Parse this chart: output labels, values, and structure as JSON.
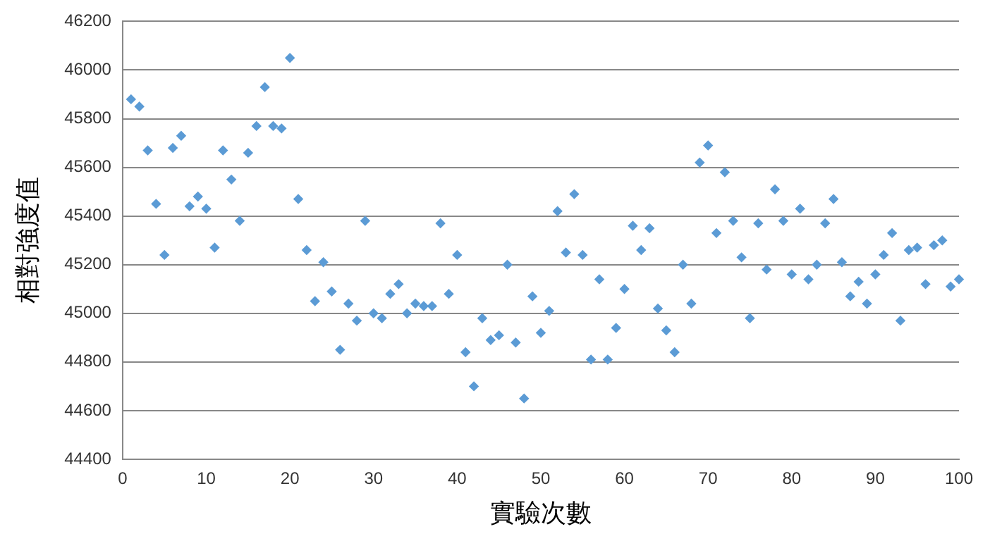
{
  "chart_data": {
    "type": "scatter",
    "xlabel": "實驗次數",
    "ylabel": "相對強度值",
    "x": [
      1,
      2,
      3,
      4,
      5,
      6,
      7,
      8,
      9,
      10,
      11,
      12,
      13,
      14,
      15,
      16,
      17,
      18,
      19,
      20,
      21,
      22,
      23,
      24,
      25,
      26,
      27,
      28,
      29,
      30,
      31,
      32,
      33,
      34,
      35,
      36,
      37,
      38,
      39,
      40,
      41,
      42,
      43,
      44,
      45,
      46,
      47,
      48,
      49,
      50,
      51,
      52,
      53,
      54,
      55,
      56,
      57,
      58,
      59,
      60,
      61,
      62,
      63,
      64,
      65,
      66,
      67,
      68,
      69,
      70,
      71,
      72,
      73,
      74,
      75,
      76,
      77,
      78,
      79,
      80,
      81,
      82,
      83,
      84,
      85,
      86,
      87,
      88,
      89,
      90,
      91,
      92,
      93,
      94,
      95,
      96,
      97,
      98,
      99,
      100
    ],
    "series": [
      {
        "color": "#5b9bd5",
        "values": [
          45880,
          45850,
          45670,
          45450,
          45240,
          45680,
          45730,
          45440,
          45480,
          45430,
          45270,
          45670,
          45550,
          45380,
          45660,
          45770,
          45930,
          45770,
          45760,
          46050,
          45470,
          45260,
          45050,
          45210,
          45090,
          44850,
          45040,
          44970,
          45380,
          45000,
          44980,
          45080,
          45120,
          45000,
          45040,
          45030,
          45030,
          45370,
          45080,
          45240,
          44840,
          44700,
          44980,
          44890,
          44910,
          45200,
          44880,
          44650,
          45070,
          44920,
          45010,
          45420,
          45250,
          45490,
          45240,
          44810,
          45140,
          44810,
          44940,
          45100,
          45360,
          45260,
          45350,
          45020,
          44930,
          44840,
          45200,
          45040,
          45620,
          45690,
          45330,
          45580,
          45380,
          45230,
          44980,
          45370,
          45180,
          45510,
          45380,
          45160,
          45430,
          45140,
          45200,
          45370,
          45470,
          45210,
          45070,
          45130,
          45040,
          45160,
          45240,
          45330,
          44970,
          45260,
          45270,
          45120,
          45280,
          45300,
          45110,
          45140
        ]
      }
    ],
    "xlim": [
      0,
      100
    ],
    "xticks": [
      0,
      10,
      20,
      30,
      40,
      50,
      60,
      70,
      80,
      90,
      100
    ],
    "ylim": [
      44400,
      46200
    ],
    "yticks": [
      44400,
      44600,
      44800,
      45000,
      45200,
      45400,
      45600,
      45800,
      46000,
      46200
    ],
    "grid": "y",
    "legend": false,
    "marker": "diamond"
  }
}
